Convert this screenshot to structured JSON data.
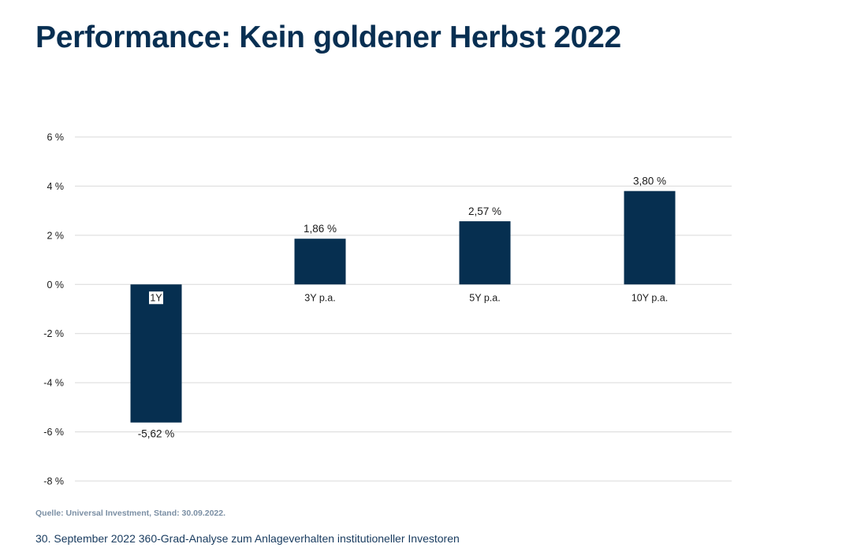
{
  "header": {
    "title": "Performance: Kein goldener Herbst 2022"
  },
  "chart_data": {
    "type": "bar",
    "title": "",
    "xlabel": "",
    "ylabel": "",
    "categories": [
      "1Y",
      "3Y p.a.",
      "5Y p.a.",
      "10Y p.a."
    ],
    "values": [
      -5.62,
      1.86,
      2.57,
      3.8
    ],
    "value_labels": [
      "-5,62 %",
      "1,86 %",
      "2,57 %",
      "3,80 %"
    ],
    "ylim": [
      -8,
      6
    ],
    "yticks": [
      6,
      4,
      2,
      0,
      -2,
      -4,
      -6,
      -8
    ],
    "ytick_labels": [
      "6 %",
      "4 %",
      "2 %",
      "0 %",
      "-2 %",
      "-4 %",
      "-6 %",
      "-8 %"
    ],
    "grid": true,
    "legend": "none",
    "bar_color": "#062f50",
    "grid_color": "#d9d9d9"
  },
  "footer": {
    "source": "Quelle: Universal Investment, Stand: 30.09.2022.",
    "text": "30. September 2022 360-Grad-Analyse zum Anlageverhalten institutioneller Investoren"
  }
}
